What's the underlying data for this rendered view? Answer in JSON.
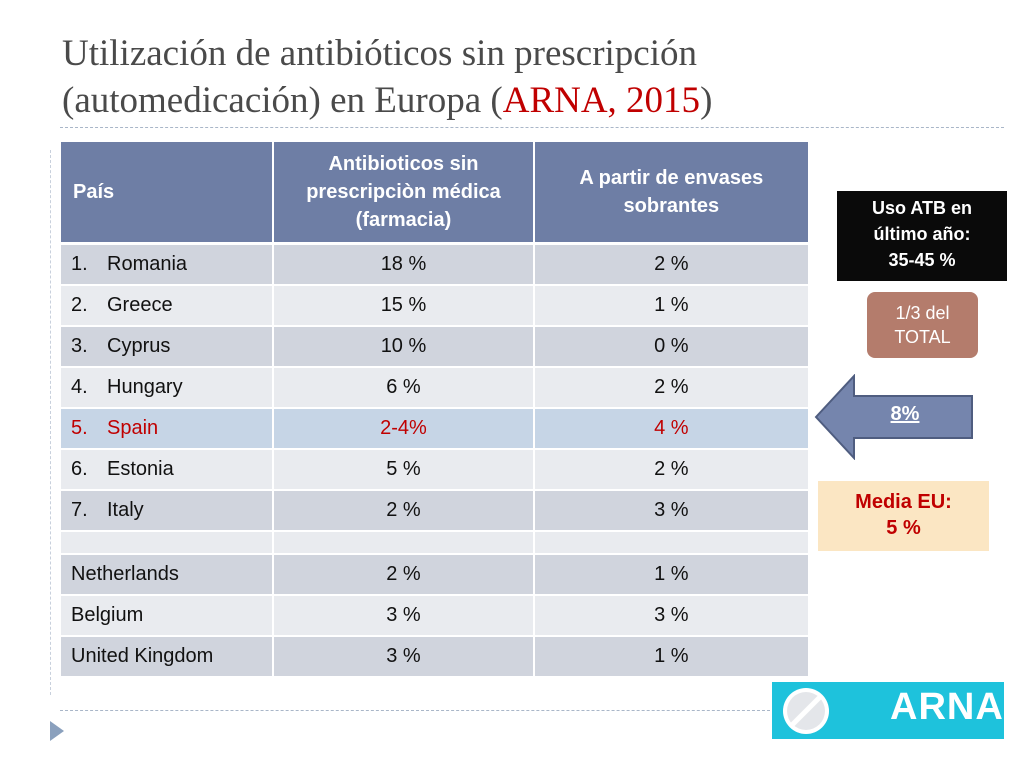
{
  "title": {
    "line1": "Utilización de antibióticos sin prescripción",
    "line2_pre": "(automedicación) en Europa (",
    "line2_red": "ARNA, 2015",
    "line2_post": ")"
  },
  "table": {
    "headers": [
      "País",
      "Antibioticos sin prescripciòn médica (farmacia)",
      "A partir de envases sobrantes"
    ],
    "rows": [
      {
        "num": "1.",
        "country": "Romania",
        "pharmacy": "18 %",
        "leftover": "2 %"
      },
      {
        "num": "2.",
        "country": "Greece",
        "pharmacy": "15 %",
        "leftover": "1 %"
      },
      {
        "num": "3.",
        "country": "Cyprus",
        "pharmacy": "10 %",
        "leftover": "0 %"
      },
      {
        "num": "4.",
        "country": "Hungary",
        "pharmacy": "6 %",
        "leftover": "2 %"
      },
      {
        "num": "5.",
        "country": "Spain",
        "pharmacy": "2-4%",
        "leftover": "4 %"
      },
      {
        "num": "6.",
        "country": "Estonia",
        "pharmacy": "5 %",
        "leftover": "2 %"
      },
      {
        "num": "7.",
        "country": "Italy",
        "pharmacy": "2 %",
        "leftover": "3 %"
      }
    ],
    "extra_rows": [
      {
        "country": "Netherlands",
        "pharmacy": "2 %",
        "leftover": "1 %"
      },
      {
        "country": "Belgium",
        "pharmacy": "3 %",
        "leftover": "3 %"
      },
      {
        "country": "United Kingdom",
        "pharmacy": "3 %",
        "leftover": "1 %"
      }
    ]
  },
  "side": {
    "black_box": {
      "line1": "Uso ATB en",
      "line2": "último año:",
      "line3": "35-45 %"
    },
    "brown_box": {
      "line1": "1/3 del",
      "line2": "TOTAL"
    },
    "arrow_label": "8%",
    "cream_box": {
      "line1": "Media EU:",
      "line2": "5 %"
    },
    "logo_text": "ARNA"
  },
  "colors": {
    "header": "#6e7ea5",
    "highlight_text": "#c00000",
    "arrow_fill": "#7585ad",
    "logo_bg": "#1ec2dc"
  }
}
